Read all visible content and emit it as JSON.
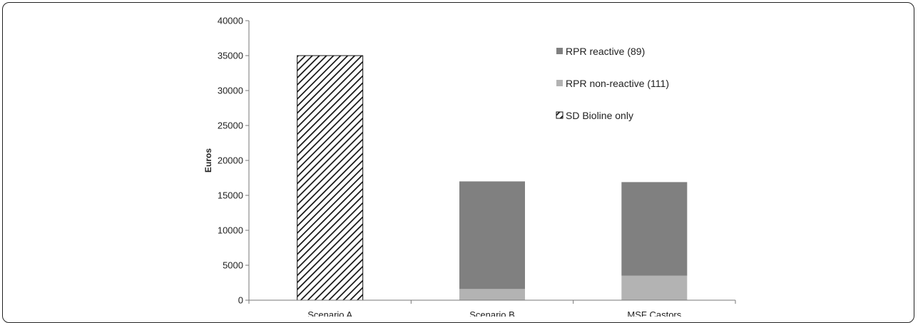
{
  "chart_data": {
    "type": "bar",
    "stacked": true,
    "categories": [
      "Scenario A",
      "Scenario B",
      "MSF Castors"
    ],
    "series": [
      {
        "name": "SD Bioline only",
        "values": [
          35000,
          0,
          0
        ],
        "color": "#ffffff",
        "pattern": "diagonal-hatch"
      },
      {
        "name": "RPR non-reactive (111)",
        "values": [
          0,
          1600,
          3500
        ],
        "color": "#b3b3b3"
      },
      {
        "name": "RPR reactive (89)",
        "values": [
          0,
          15400,
          13400
        ],
        "color": "#808080"
      }
    ],
    "ylabel": "Euros",
    "ylim": [
      0,
      40000
    ],
    "yticks": [
      0,
      5000,
      10000,
      15000,
      20000,
      25000,
      30000,
      35000,
      40000
    ],
    "legend_order": [
      "RPR reactive (89)",
      "RPR non-reactive (111)",
      "SD Bioline only"
    ],
    "legend_position": "top-right",
    "grid": false
  }
}
